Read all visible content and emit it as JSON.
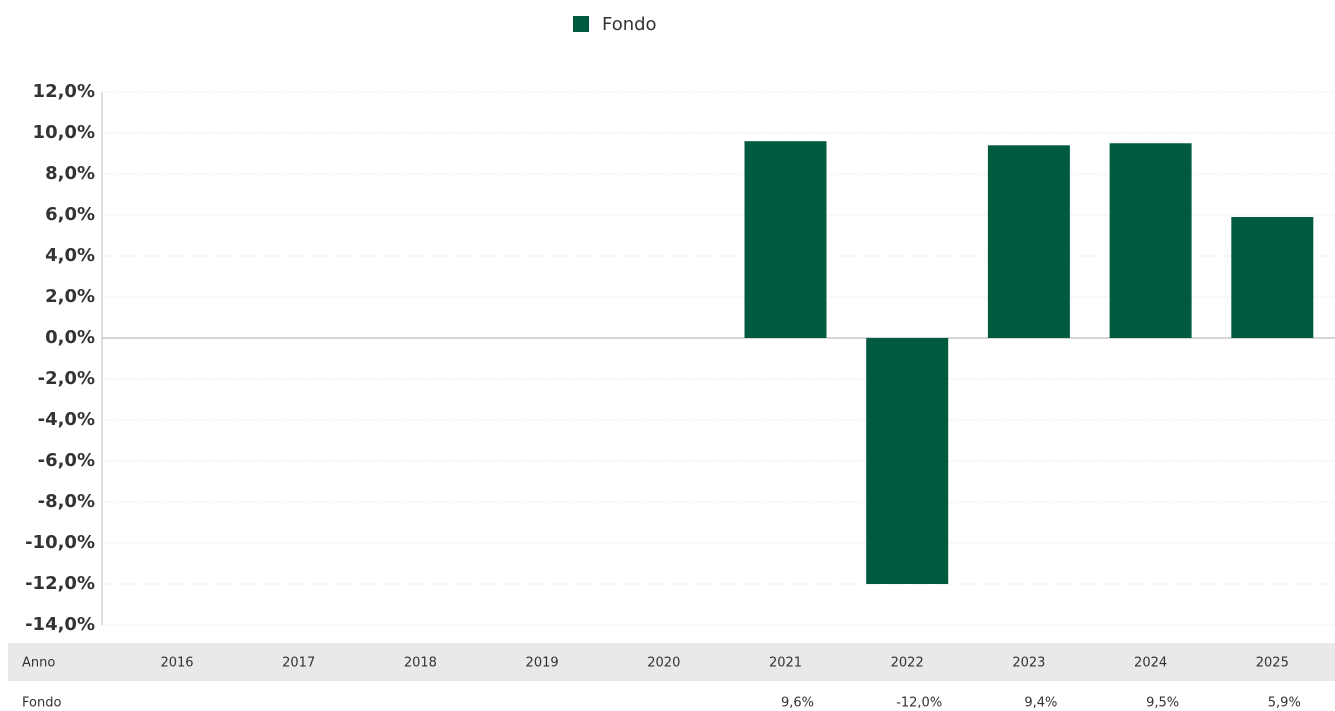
{
  "chart_data": {
    "type": "bar",
    "x_label": "Anno",
    "categories": [
      "2016",
      "2017",
      "2018",
      "2019",
      "2020",
      "2021",
      "2022",
      "2023",
      "2024",
      "2025"
    ],
    "series": [
      {
        "name": "Fondo",
        "color": "#005a3f",
        "values": [
          null,
          null,
          null,
          null,
          null,
          9.6,
          -12.0,
          9.4,
          9.5,
          5.9
        ],
        "value_labels": [
          null,
          null,
          null,
          null,
          null,
          "9,6%",
          "-12,0%",
          "9,4%",
          "9,5%",
          "5,9%"
        ]
      }
    ],
    "ylim": [
      -14,
      12
    ],
    "yticks": [
      {
        "value": 12,
        "label": "12,0%"
      },
      {
        "value": 10,
        "label": "10,0%"
      },
      {
        "value": 8,
        "label": "8,0%"
      },
      {
        "value": 6,
        "label": "6,0%"
      },
      {
        "value": 4,
        "label": "4,0%"
      },
      {
        "value": 2,
        "label": "2,0%"
      },
      {
        "value": 0,
        "label": "0,0%"
      },
      {
        "value": -2,
        "label": "-2,0%"
      },
      {
        "value": -4,
        "label": "-4,0%"
      },
      {
        "value": -6,
        "label": "-6,0%"
      },
      {
        "value": -8,
        "label": "-8,0%"
      },
      {
        "value": -10,
        "label": "-10,0%"
      },
      {
        "value": -12,
        "label": "-12,0%"
      },
      {
        "value": -14,
        "label": "-14,0%"
      }
    ],
    "grid": true,
    "legend": "top"
  }
}
